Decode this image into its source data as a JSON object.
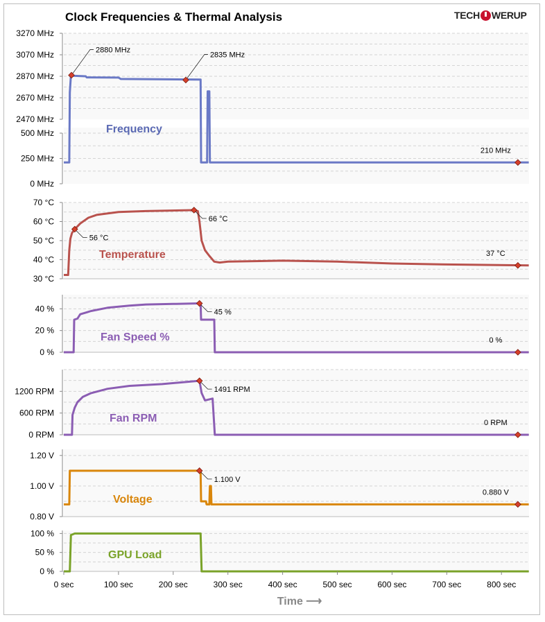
{
  "title": "Clock Frequencies & Thermal  Analysis",
  "logo": {
    "left": "TECH",
    "right": "WERUP",
    "full": "TECHPOWERUP",
    "icon": "power-icon"
  },
  "chart_data": {
    "type": "line",
    "xlabel": "Time ⟶",
    "x_ticks": [
      0,
      100,
      200,
      300,
      400,
      500,
      600,
      700,
      800
    ],
    "x_tick_labels": [
      "0 sec",
      "100 sec",
      "200 sec",
      "300 sec",
      "400 sec",
      "500 sec",
      "600 sec",
      "700 sec",
      "800 sec"
    ],
    "xlim": [
      0,
      850
    ],
    "grid": true,
    "panels": [
      {
        "name": "Frequency",
        "color": "#6a79c6",
        "label_color": "#5a69b3",
        "broken_axis": true,
        "ylim_upper": [
          2470,
          3270
        ],
        "ylim_lower": [
          0,
          500
        ],
        "y_ticks": [
          3270,
          3070,
          2870,
          2670,
          2470,
          500,
          250,
          0
        ],
        "y_tick_labels": [
          "3270 MHz",
          "3070 MHz",
          "2870 MHz",
          "2670 MHz",
          "2470 MHz",
          "500 MHz",
          "250 MHz",
          "0 MHz"
        ],
        "points": [
          [
            0,
            210
          ],
          [
            10,
            210
          ],
          [
            11,
            2720
          ],
          [
            13,
            2880
          ],
          [
            16,
            2875
          ],
          [
            40,
            2870
          ],
          [
            42,
            2860
          ],
          [
            100,
            2858
          ],
          [
            104,
            2845
          ],
          [
            248,
            2840
          ],
          [
            250,
            2840
          ],
          [
            251,
            210
          ],
          [
            262,
            210
          ],
          [
            263,
            2730
          ],
          [
            266,
            2730
          ],
          [
            267,
            210
          ],
          [
            850,
            210
          ]
        ],
        "annotations": [
          {
            "x": 14,
            "y": 2880,
            "text": "2880 MHz"
          },
          {
            "x": 223,
            "y": 2835,
            "text": "2835 MHz"
          },
          {
            "x": 830,
            "y": 210,
            "text": "210 MHz"
          }
        ]
      },
      {
        "name": "Temperature",
        "color": "#b9524d",
        "label_color": "#b9524d",
        "ylim": [
          30,
          70
        ],
        "y_ticks": [
          70,
          60,
          50,
          40,
          30
        ],
        "y_tick_labels": [
          "70 °C",
          "60 °C",
          "50 °C",
          "40 °C",
          "30 °C"
        ],
        "points": [
          [
            0,
            32
          ],
          [
            8,
            32
          ],
          [
            10,
            45
          ],
          [
            12,
            51
          ],
          [
            15,
            54
          ],
          [
            20,
            56
          ],
          [
            30,
            59
          ],
          [
            45,
            62
          ],
          [
            60,
            63.5
          ],
          [
            100,
            65
          ],
          [
            150,
            65.5
          ],
          [
            238,
            66
          ],
          [
            245,
            65.5
          ],
          [
            248,
            60
          ],
          [
            252,
            50
          ],
          [
            258,
            45
          ],
          [
            266,
            42
          ],
          [
            275,
            39
          ],
          [
            285,
            38.5
          ],
          [
            300,
            39
          ],
          [
            400,
            39.5
          ],
          [
            500,
            39
          ],
          [
            600,
            38
          ],
          [
            700,
            37.5
          ],
          [
            850,
            37
          ]
        ],
        "annotations": [
          {
            "x": 20,
            "y": 56,
            "text": "56 °C"
          },
          {
            "x": 238,
            "y": 66,
            "text": "66 °C"
          },
          {
            "x": 830,
            "y": 37,
            "text": "37 °C"
          }
        ]
      },
      {
        "name": "Fan Speed %",
        "color": "#8b5db3",
        "label_color": "#8b5db3",
        "ylim": [
          0,
          53
        ],
        "y_ticks": [
          40,
          20,
          0
        ],
        "y_tick_labels": [
          "40 %",
          "20 %",
          "0 %"
        ],
        "points": [
          [
            0,
            0
          ],
          [
            18,
            0
          ],
          [
            19,
            30
          ],
          [
            25,
            31
          ],
          [
            30,
            35
          ],
          [
            50,
            38
          ],
          [
            80,
            41
          ],
          [
            120,
            43
          ],
          [
            150,
            44
          ],
          [
            200,
            44.5
          ],
          [
            248,
            45
          ],
          [
            250,
            45
          ],
          [
            251,
            30
          ],
          [
            275,
            30
          ],
          [
            276,
            0
          ],
          [
            850,
            0
          ]
        ],
        "annotations": [
          {
            "x": 248,
            "y": 45,
            "text": "45 %"
          },
          {
            "x": 830,
            "y": 0,
            "text": "0 %"
          }
        ]
      },
      {
        "name": "Fan RPM",
        "color": "#8b5db3",
        "label_color": "#8b5db3",
        "ylim": [
          0,
          1800
        ],
        "y_ticks": [
          1200,
          600,
          0
        ],
        "y_tick_labels": [
          "1200 RPM",
          "600 RPM",
          "0 RPM"
        ],
        "points": [
          [
            0,
            0
          ],
          [
            15,
            0
          ],
          [
            16,
            550
          ],
          [
            20,
            750
          ],
          [
            25,
            900
          ],
          [
            35,
            1050
          ],
          [
            50,
            1150
          ],
          [
            80,
            1270
          ],
          [
            120,
            1350
          ],
          [
            180,
            1400
          ],
          [
            248,
            1491
          ],
          [
            252,
            1150
          ],
          [
            258,
            950
          ],
          [
            272,
            1000
          ],
          [
            276,
            0
          ],
          [
            850,
            0
          ]
        ],
        "annotations": [
          {
            "x": 248,
            "y": 1491,
            "text": "1491 RPM"
          },
          {
            "x": 830,
            "y": 0,
            "text": "0 RPM"
          }
        ]
      },
      {
        "name": "Voltage",
        "color": "#d9860b",
        "label_color": "#d9860b",
        "ylim": [
          0.8,
          1.24
        ],
        "y_ticks": [
          1.2,
          1.0,
          0.8
        ],
        "y_tick_labels": [
          "1.20 V",
          "1.00 V",
          "0.80 V"
        ],
        "points": [
          [
            0,
            0.88
          ],
          [
            10,
            0.88
          ],
          [
            11,
            1.1
          ],
          [
            248,
            1.1
          ],
          [
            250,
            1.1
          ],
          [
            251,
            0.9
          ],
          [
            260,
            0.9
          ],
          [
            261,
            0.88
          ],
          [
            266,
            0.88
          ],
          [
            267,
            1.0
          ],
          [
            269,
            1.0
          ],
          [
            270,
            0.88
          ],
          [
            850,
            0.88
          ]
        ],
        "annotations": [
          {
            "x": 248,
            "y": 1.1,
            "text": "1.100 V"
          },
          {
            "x": 830,
            "y": 0.88,
            "text": "0.880 V"
          }
        ]
      },
      {
        "name": "GPU Load",
        "color": "#7aa329",
        "label_color": "#7aa329",
        "ylim": [
          0,
          108
        ],
        "y_ticks": [
          100,
          50,
          0
        ],
        "y_tick_labels": [
          "100 %",
          "50 %",
          "0 %"
        ],
        "points": [
          [
            0,
            0
          ],
          [
            11,
            0
          ],
          [
            13,
            96
          ],
          [
            20,
            100
          ],
          [
            250,
            100
          ],
          [
            252,
            0
          ],
          [
            850,
            0
          ]
        ],
        "annotations": []
      }
    ]
  }
}
